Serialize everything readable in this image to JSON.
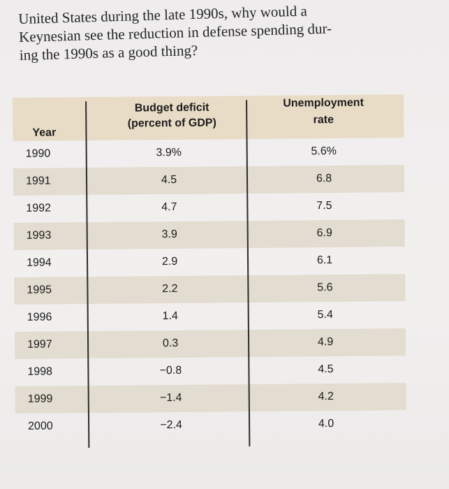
{
  "question": {
    "line1": "United States during the late 1990s, why would a",
    "line2": "Keynesian see the reduction in defense spending dur-",
    "line3": "ing the 1990s as a good thing?"
  },
  "table": {
    "headers": {
      "year": "Year",
      "deficit_line1": "Budget deficit",
      "deficit_line2": "(percent of GDP)",
      "unemp_line1": "Unemployment",
      "unemp_line2": "rate"
    },
    "rows": [
      {
        "year": "1990",
        "deficit": "3.9%",
        "unemp": "5.6%"
      },
      {
        "year": "1991",
        "deficit": "4.5",
        "unemp": "6.8"
      },
      {
        "year": "1992",
        "deficit": "4.7",
        "unemp": "7.5"
      },
      {
        "year": "1993",
        "deficit": "3.9",
        "unemp": "6.9"
      },
      {
        "year": "1994",
        "deficit": "2.9",
        "unemp": "6.1"
      },
      {
        "year": "1995",
        "deficit": "2.2",
        "unemp": "5.6"
      },
      {
        "year": "1996",
        "deficit": "1.4",
        "unemp": "5.4"
      },
      {
        "year": "1997",
        "deficit": "0.3",
        "unemp": "4.9"
      },
      {
        "year": "1998",
        "deficit": "−0.8",
        "unemp": "4.5"
      },
      {
        "year": "1999",
        "deficit": "−1.4",
        "unemp": "4.2"
      },
      {
        "year": "2000",
        "deficit": "−2.4",
        "unemp": "4.0"
      }
    ]
  },
  "colors": {
    "header_band": "#e8dcc6",
    "row_shade": "#e3dcd0",
    "text": "#1c1c1c"
  }
}
